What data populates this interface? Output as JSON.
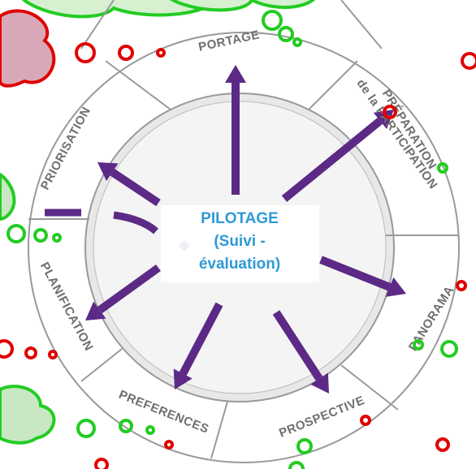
{
  "diagram": {
    "center": {
      "title": "PILOTAGE",
      "subtitle": "(Suivi -",
      "subtitle2": "évaluation)"
    },
    "segments": [
      "PORTAGE",
      "PRÉPARATION",
      "de la PARTICIPATION",
      "PANORAMA",
      "PROSPECTIVE",
      "PREFERENCES",
      "PLANIFICATION",
      "PRIORISATION"
    ]
  }
}
